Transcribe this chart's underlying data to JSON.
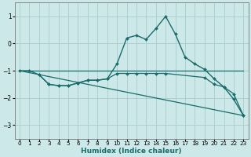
{
  "background_color": "#cce8e8",
  "grid_color": "#aacccc",
  "line_color": "#1a6b6b",
  "xlabel": "Humidex (Indice chaleur)",
  "xlim": [
    -0.5,
    23.5
  ],
  "ylim": [
    -3.5,
    1.5
  ],
  "yticks": [
    -3,
    -2,
    -1,
    0,
    1
  ],
  "xtick_labels": [
    "0",
    "1",
    "2",
    "3",
    "4",
    "5",
    "6",
    "7",
    "8",
    "9",
    "10",
    "11",
    "12",
    "13",
    "14",
    "15",
    "16",
    "17",
    "18",
    "19",
    "20",
    "21",
    "22",
    "23"
  ],
  "xticks": [
    0,
    1,
    2,
    3,
    4,
    5,
    6,
    7,
    8,
    9,
    10,
    11,
    12,
    13,
    14,
    15,
    16,
    17,
    18,
    19,
    20,
    21,
    22,
    23
  ],
  "series": [
    {
      "x": [
        0,
        1,
        2,
        3,
        4,
        5,
        6,
        7,
        8,
        9,
        10,
        11,
        12,
        13,
        14,
        15,
        16,
        17,
        18,
        19,
        20,
        21,
        22,
        23
      ],
      "y": [
        -1.0,
        -1.0,
        -1.15,
        -1.5,
        -1.55,
        -1.55,
        -1.45,
        -1.35,
        -1.35,
        -1.3,
        -0.75,
        0.2,
        0.3,
        0.15,
        0.55,
        1.0,
        0.35,
        -0.5,
        -0.75,
        -0.95,
        -1.3,
        -1.6,
        -2.05,
        -2.65
      ],
      "marker": "D",
      "markersize": 2.0,
      "linewidth": 1.0,
      "linestyle": "-"
    },
    {
      "x": [
        0,
        23
      ],
      "y": [
        -1.0,
        -1.0
      ],
      "marker": null,
      "markersize": 0,
      "linewidth": 0.9,
      "linestyle": "-"
    },
    {
      "x": [
        2,
        3,
        4,
        5,
        6,
        7,
        8,
        9,
        10,
        11,
        12,
        13,
        14,
        15,
        19,
        20,
        21,
        22,
        23
      ],
      "y": [
        -1.15,
        -1.5,
        -1.55,
        -1.55,
        -1.45,
        -1.35,
        -1.35,
        -1.3,
        -1.1,
        -1.1,
        -1.1,
        -1.1,
        -1.1,
        -1.1,
        -1.25,
        -1.5,
        -1.6,
        -1.85,
        -2.65
      ],
      "marker": "D",
      "markersize": 2.0,
      "linewidth": 0.9,
      "linestyle": "-"
    },
    {
      "x": [
        0,
        23
      ],
      "y": [
        -1.0,
        -2.65
      ],
      "marker": null,
      "markersize": 0,
      "linewidth": 0.9,
      "linestyle": "-"
    }
  ]
}
